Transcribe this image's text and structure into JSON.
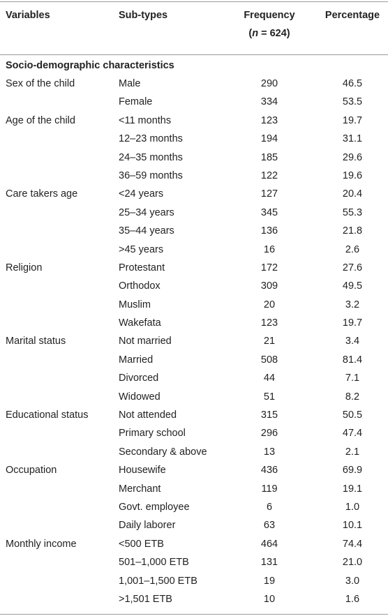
{
  "header": {
    "variables": "Variables",
    "sub_types": "Sub-types",
    "frequency": "Frequency",
    "n_label": "n",
    "n_value": " = 624)",
    "percentage": "Percentage"
  },
  "section_title": "Socio-demographic characteristics",
  "rows": [
    {
      "variable": "Sex of the child",
      "sub_type": "Male",
      "frequency": "290",
      "percentage": "46.5"
    },
    {
      "variable": "",
      "sub_type": "Female",
      "frequency": "334",
      "percentage": "53.5"
    },
    {
      "variable": "Age of the child",
      "sub_type": "<11 months",
      "frequency": "123",
      "percentage": "19.7"
    },
    {
      "variable": "",
      "sub_type": "12–23 months",
      "frequency": "194",
      "percentage": "31.1"
    },
    {
      "variable": "",
      "sub_type": "24–35 months",
      "frequency": "185",
      "percentage": "29.6"
    },
    {
      "variable": "",
      "sub_type": "36–59 months",
      "frequency": "122",
      "percentage": "19.6"
    },
    {
      "variable": "Care takers age",
      "sub_type": "<24 years",
      "frequency": "127",
      "percentage": "20.4"
    },
    {
      "variable": "",
      "sub_type": "25–34 years",
      "frequency": "345",
      "percentage": "55.3"
    },
    {
      "variable": "",
      "sub_type": "35–44 years",
      "frequency": "136",
      "percentage": "21.8"
    },
    {
      "variable": "",
      "sub_type": ">45 years",
      "frequency": "16",
      "percentage": "2.6"
    },
    {
      "variable": "Religion",
      "sub_type": "Protestant",
      "frequency": "172",
      "percentage": "27.6"
    },
    {
      "variable": "",
      "sub_type": "Orthodox",
      "frequency": "309",
      "percentage": "49.5"
    },
    {
      "variable": "",
      "sub_type": "Muslim",
      "frequency": "20",
      "percentage": "3.2"
    },
    {
      "variable": "",
      "sub_type": "Wakefata",
      "frequency": "123",
      "percentage": "19.7"
    },
    {
      "variable": "Marital status",
      "sub_type": "Not married",
      "frequency": "21",
      "percentage": "3.4"
    },
    {
      "variable": "",
      "sub_type": "Married",
      "frequency": "508",
      "percentage": "81.4"
    },
    {
      "variable": "",
      "sub_type": "Divorced",
      "frequency": "44",
      "percentage": "7.1"
    },
    {
      "variable": "",
      "sub_type": "Widowed",
      "frequency": "51",
      "percentage": "8.2"
    },
    {
      "variable": "Educational status",
      "sub_type": "Not attended",
      "frequency": "315",
      "percentage": "50.5"
    },
    {
      "variable": "",
      "sub_type": "Primary school",
      "frequency": "296",
      "percentage": "47.4"
    },
    {
      "variable": "",
      "sub_type": "Secondary & above",
      "frequency": "13",
      "percentage": "2.1"
    },
    {
      "variable": "Occupation",
      "sub_type": "Housewife",
      "frequency": "436",
      "percentage": "69.9"
    },
    {
      "variable": "",
      "sub_type": "Merchant",
      "frequency": "119",
      "percentage": "19.1"
    },
    {
      "variable": "",
      "sub_type": "Govt. employee",
      "frequency": "6",
      "percentage": "1.0"
    },
    {
      "variable": "",
      "sub_type": "Daily laborer",
      "frequency": "63",
      "percentage": "10.1"
    },
    {
      "variable": "Monthly income",
      "sub_type": "<500 ETB",
      "frequency": "464",
      "percentage": "74.4"
    },
    {
      "variable": "",
      "sub_type": "501–1,000 ETB",
      "frequency": "131",
      "percentage": "21.0"
    },
    {
      "variable": "",
      "sub_type": "1,001–1,500 ETB",
      "frequency": "19",
      "percentage": "3.0"
    },
    {
      "variable": "",
      "sub_type": ">1,501 ETB",
      "frequency": "10",
      "percentage": "1.6"
    }
  ]
}
